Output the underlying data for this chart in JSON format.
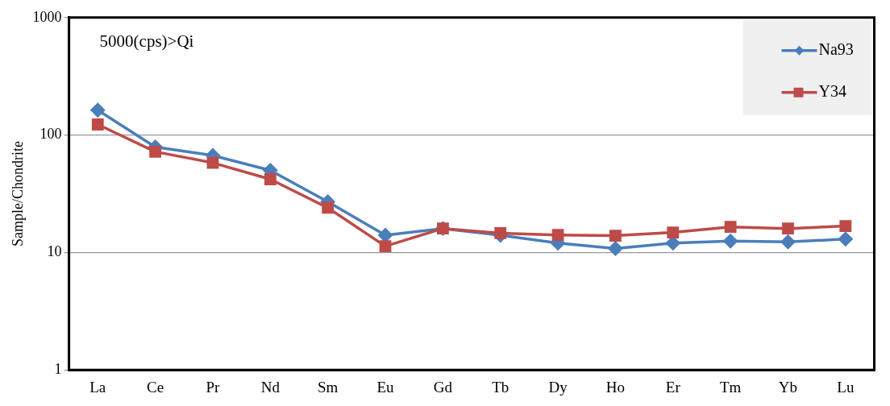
{
  "chart_data": {
    "type": "line",
    "ylabel": "Sample/Chondrite",
    "log": "y",
    "ylim": [
      1,
      1000
    ],
    "yticks": [
      1,
      10,
      100,
      1000
    ],
    "grid": "y",
    "legend": "top right",
    "annotations": [
      "5000(cps)>Qi"
    ],
    "categories": [
      "La",
      "Ce",
      "Pr",
      "Nd",
      "Sm",
      "Eu",
      "Gd",
      "Tb",
      "Dy",
      "Ho",
      "Er",
      "Tm",
      "Yb",
      "Lu"
    ],
    "series": [
      {
        "name": "Na93",
        "color": "#4a7ebb",
        "marker": "diamond",
        "values": [
          163,
          79,
          67,
          50,
          27,
          14,
          16,
          14,
          12,
          10.8,
          12,
          12.5,
          12.3,
          13
        ]
      },
      {
        "name": "Y34",
        "color": "#be4b48",
        "marker": "square",
        "values": [
          123,
          72,
          58,
          42,
          24,
          11.3,
          16,
          14.6,
          14.1,
          13.9,
          14.8,
          16.5,
          16,
          16.8
        ]
      }
    ]
  }
}
